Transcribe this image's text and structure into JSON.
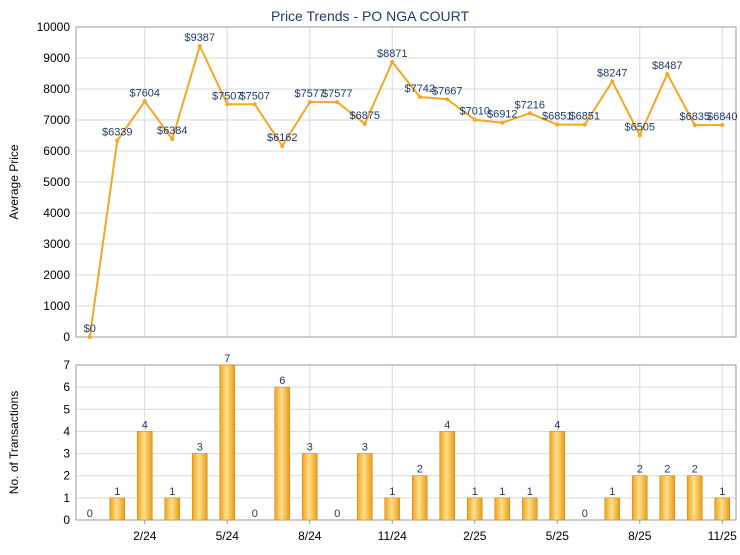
{
  "chart_data": [
    {
      "type": "line",
      "title": "Price Trends - PO NGA COURT",
      "ylabel": "Average Price",
      "ylim": [
        0,
        10000
      ],
      "yticks": [
        "0",
        "1000",
        "2000",
        "3000",
        "4000",
        "5000",
        "6000",
        "7000",
        "8000",
        "9000",
        "10000"
      ],
      "values": [
        0,
        6339,
        7604,
        6384,
        9387,
        7507,
        7507,
        6162,
        7577,
        7577,
        6875,
        8871,
        7742,
        7667,
        7010,
        6912,
        7216,
        6851,
        6851,
        8247,
        6505,
        8487,
        6835,
        6840
      ],
      "labels": [
        "$0",
        "$6339",
        "$7604",
        "$6384",
        "$9387",
        "$7507",
        "$7507",
        "$6162",
        "$7577",
        "$7577",
        "$6875",
        "$8871",
        "$7742",
        "$7667",
        "$7010",
        "$6912",
        "$7216",
        "$6851",
        "$6851",
        "$8247",
        "$6505",
        "$8487",
        "$6835",
        "$6840"
      ],
      "color": "#f5a623",
      "grid": true
    },
    {
      "type": "bar",
      "ylabel": "No. of Transactions",
      "ylim": [
        0,
        7
      ],
      "yticks": [
        "0",
        "1",
        "2",
        "3",
        "4",
        "5",
        "6",
        "7"
      ],
      "values": [
        0,
        1,
        4,
        1,
        3,
        7,
        0,
        6,
        3,
        0,
        3,
        1,
        2,
        4,
        1,
        1,
        1,
        4,
        0,
        1,
        2,
        2,
        2,
        1
      ],
      "xticks": [
        {
          "index": 2,
          "label": "2/24"
        },
        {
          "index": 5,
          "label": "5/24"
        },
        {
          "index": 8,
          "label": "8/24"
        },
        {
          "index": 11,
          "label": "11/24"
        },
        {
          "index": 14,
          "label": "2/25"
        },
        {
          "index": 17,
          "label": "5/25"
        },
        {
          "index": 20,
          "label": "8/25"
        },
        {
          "index": 23,
          "label": "11/25"
        }
      ],
      "color": "#f5a623",
      "grid": true
    }
  ]
}
